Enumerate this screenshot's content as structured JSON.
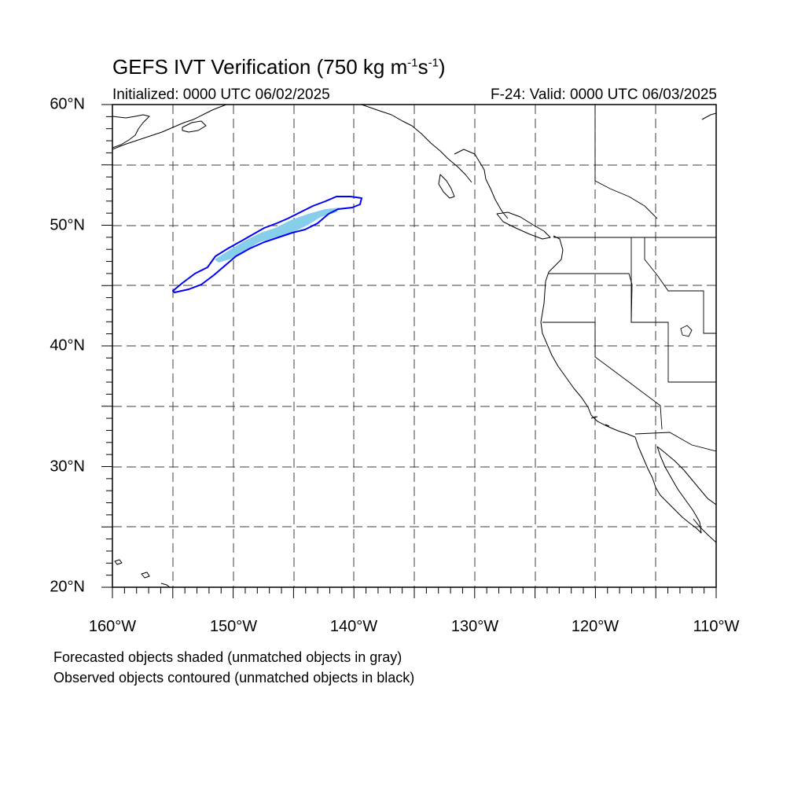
{
  "header": {
    "title_main": "GEFS IVT Verification (750 kg m",
    "title_exp1": "-1",
    "title_mid": "s",
    "title_exp2": "-1",
    "title_end": ")",
    "initialized": "Initialized: 0000 UTC 06/02/2025",
    "valid": "F-24: Valid: 0000 UTC 06/03/2025"
  },
  "axes": {
    "lat_labels": [
      "60°N",
      "50°N",
      "40°N",
      "30°N",
      "20°N"
    ],
    "lon_labels": [
      "160°W",
      "150°W",
      "140°W",
      "130°W",
      "120°W",
      "110°W"
    ],
    "lat_range": [
      20,
      60
    ],
    "lon_range": [
      -160,
      -110
    ],
    "grid": "dashed every 5°"
  },
  "legend": {
    "forecast_note": "Forecasted objects shaded (unmatched objects in gray)",
    "observed_note": "Observed objects contoured (unmatched objects in black)"
  },
  "colors": {
    "forecast_fill": "#87ceeb",
    "observed_contour": "#0000ff",
    "coastline": "#000000",
    "grid": "#000000"
  },
  "objects": {
    "forecast_shaded": {
      "matched": true,
      "extent_lon": [
        -154,
        -141
      ],
      "extent_lat": [
        47,
        52
      ]
    },
    "observed_contour": {
      "matched": true,
      "extent_lon": [
        -155,
        -139.5
      ],
      "extent_lat": [
        44.5,
        52.3
      ]
    }
  }
}
